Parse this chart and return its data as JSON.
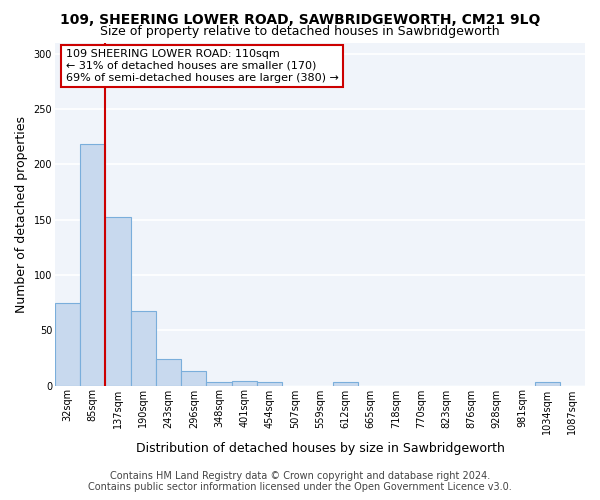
{
  "title": "109, SHEERING LOWER ROAD, SAWBRIDGEWORTH, CM21 9LQ",
  "subtitle": "Size of property relative to detached houses in Sawbridgeworth",
  "xlabel": "Distribution of detached houses by size in Sawbridgeworth",
  "ylabel": "Number of detached properties",
  "footnote1": "Contains HM Land Registry data © Crown copyright and database right 2024.",
  "footnote2": "Contains public sector information licensed under the Open Government Licence v3.0.",
  "categories": [
    "32sqm",
    "85sqm",
    "137sqm",
    "190sqm",
    "243sqm",
    "296sqm",
    "348sqm",
    "401sqm",
    "454sqm",
    "507sqm",
    "559sqm",
    "612sqm",
    "665sqm",
    "718sqm",
    "770sqm",
    "823sqm",
    "876sqm",
    "928sqm",
    "981sqm",
    "1034sqm",
    "1087sqm"
  ],
  "values": [
    75,
    218,
    152,
    67,
    24,
    13,
    3,
    4,
    3,
    0,
    0,
    3,
    0,
    0,
    0,
    0,
    0,
    0,
    0,
    3,
    0
  ],
  "bar_color": "#c8d9ee",
  "bar_edge_color": "#7aaedb",
  "ylim": [
    0,
    310
  ],
  "yticks": [
    0,
    50,
    100,
    150,
    200,
    250,
    300
  ],
  "property_line_color": "#cc0000",
  "annotation_text": "109 SHEERING LOWER ROAD: 110sqm\n← 31% of detached houses are smaller (170)\n69% of semi-detached houses are larger (380) →",
  "annotation_box_facecolor": "#ffffff",
  "annotation_box_edgecolor": "#cc0000",
  "background_color": "#ffffff",
  "plot_bg_color": "#f0f4fa",
  "grid_color": "#ffffff",
  "title_fontsize": 10,
  "subtitle_fontsize": 9,
  "tick_fontsize": 7,
  "label_fontsize": 9,
  "annot_fontsize": 8,
  "footnote_fontsize": 7
}
